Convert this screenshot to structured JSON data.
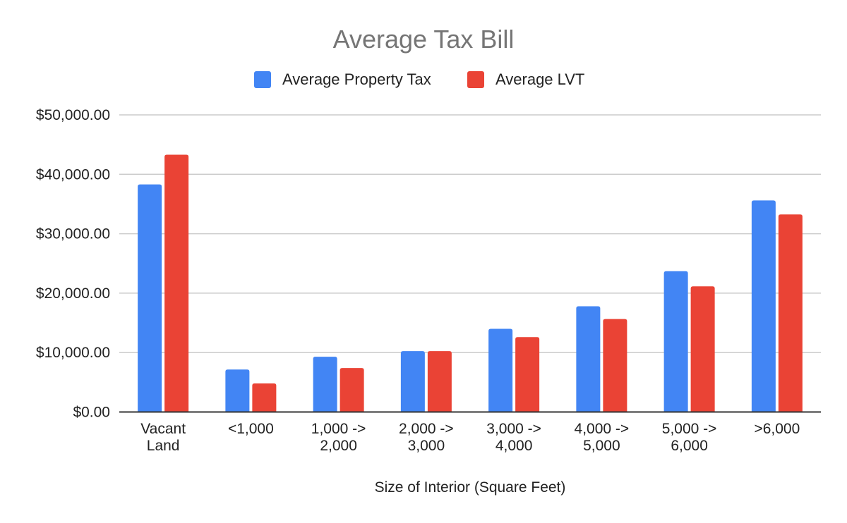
{
  "chart_data": {
    "type": "bar",
    "title": "Average Tax Bill",
    "xlabel": "Size of Interior (Square Feet)",
    "ylabel": "",
    "ylim": [
      0,
      50000
    ],
    "yticks": [
      0,
      10000,
      20000,
      30000,
      40000,
      50000
    ],
    "ytick_labels": [
      "$0.00",
      "$10,000.00",
      "$20,000.00",
      "$30,000.00",
      "$40,000.00",
      "$50,000.00"
    ],
    "grid": true,
    "legend_position": "top-center",
    "categories": [
      [
        "Vacant",
        "Land"
      ],
      [
        "<1,000"
      ],
      [
        "1,000 ->",
        "2,000"
      ],
      [
        "2,000 ->",
        "3,000"
      ],
      [
        "3,000 ->",
        "4,000"
      ],
      [
        "4,000 ->",
        "5,000"
      ],
      [
        "5,000 ->",
        "6,000"
      ],
      [
        ">6,000"
      ]
    ],
    "series": [
      {
        "name": "Average Property Tax",
        "color": "#4285F4",
        "values": [
          38300,
          7150,
          9300,
          10250,
          14000,
          17800,
          23700,
          35600
        ]
      },
      {
        "name": "Average LVT",
        "color": "#EA4335",
        "values": [
          43300,
          4800,
          7400,
          10250,
          12600,
          15650,
          21150,
          33250
        ]
      }
    ]
  }
}
